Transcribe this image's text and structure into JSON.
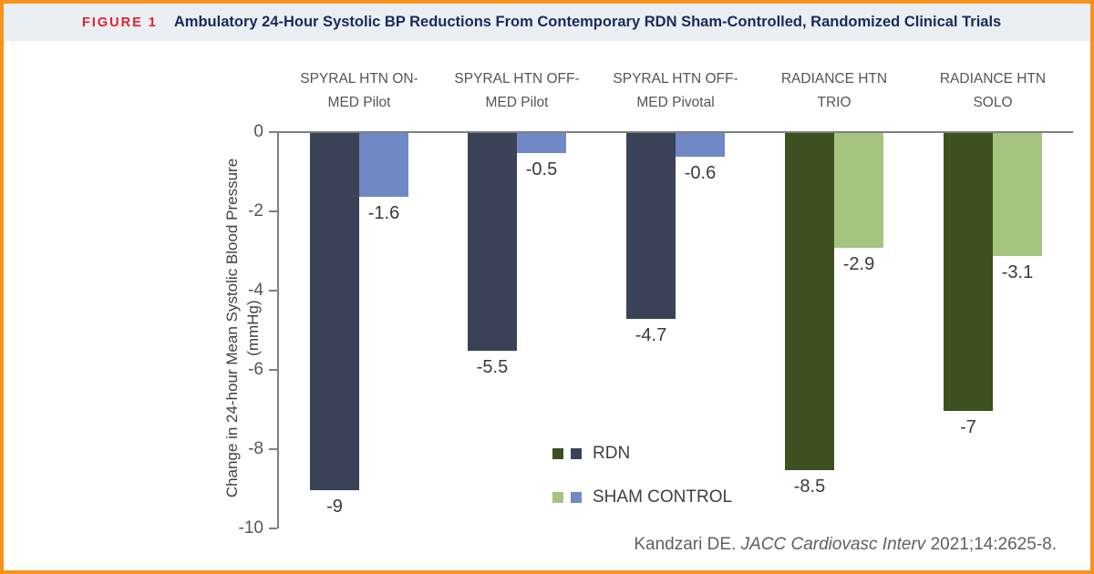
{
  "figure": {
    "label": "FIGURE 1",
    "title": "Ambulatory 24-Hour Systolic BP Reductions From Contemporary RDN Sham-Controlled, Randomized Clinical Trials"
  },
  "citation": {
    "prefix": "Kandzari DE. ",
    "journal": "JACC Cardiovasc Interv",
    "suffix": " 2021;14:2625-8."
  },
  "colors": {
    "frame_border": "#F6921E",
    "header_background": "#E9EFF3",
    "figure_label_red": "#E4212E",
    "title_navy": "#1A2A5C",
    "axis_gray": "#7F7F7F",
    "rdn_spyral_navy": "#3A4257",
    "sham_spyral_blue": "#7088C6",
    "rdn_radiance_dark_green": "#3C5020",
    "sham_radiance_light_green": "#A5C47F"
  },
  "chart_data": {
    "type": "bar",
    "title": "Ambulatory 24-Hour Systolic BP Reductions From Contemporary RDN Sham-Controlled, Randomized Clinical Trials",
    "categories": [
      "SPYRAL HTN ON-MED Pilot",
      "SPYRAL HTN OFF-MED Pilot",
      "SPYRAL HTN OFF-MED Pivotal",
      "RADIANCE HTN TRIO",
      "RADIANCE HTN SOLO"
    ],
    "category_lines": [
      [
        "SPYRAL HTN ON-",
        "MED Pilot"
      ],
      [
        "SPYRAL HTN OFF-",
        "MED Pilot"
      ],
      [
        "SPYRAL HTN OFF-",
        "MED Pivotal"
      ],
      [
        "RADIANCE HTN",
        "TRIO"
      ],
      [
        "RADIANCE HTN",
        "SOLO"
      ]
    ],
    "series": [
      {
        "name": "RDN",
        "values": [
          -9,
          -5.5,
          -4.7,
          -8.5,
          -7
        ],
        "labels": [
          "-9",
          "-5.5",
          "-4.7",
          "-8.5",
          "-7"
        ],
        "bar_colors": [
          "#3A4257",
          "#3A4257",
          "#3A4257",
          "#3C5020",
          "#3C5020"
        ]
      },
      {
        "name": "SHAM CONTROL",
        "values": [
          -1.6,
          -0.5,
          -0.6,
          -2.9,
          -3.1
        ],
        "labels": [
          "-1.6",
          "-0.5",
          "-0.6",
          "-2.9",
          "-3.1"
        ],
        "bar_colors": [
          "#7088C6",
          "#7088C6",
          "#7088C6",
          "#A5C47F",
          "#A5C47F"
        ]
      }
    ],
    "xlabel": "",
    "ylabel": "Change in 24-hour Mean Systolic Blood Pressure (mmHg)",
    "ylabel_lines": [
      "Change in 24-hour Mean Systolic Blood Pressure",
      "(mmHg)"
    ],
    "yticks": [
      0,
      -2,
      -4,
      -6,
      -8,
      -10
    ],
    "ytick_labels": [
      "0",
      "-2",
      "-4",
      "-6",
      "-8",
      "-10"
    ],
    "ylim": [
      0,
      -10
    ],
    "grid": false,
    "legend": {
      "position": "center-bottom",
      "entries": [
        {
          "label": "RDN",
          "swatches": [
            "#3C5020",
            "#3A4257"
          ]
        },
        {
          "label": "SHAM CONTROL",
          "swatches": [
            "#A5C47F",
            "#7088C6"
          ]
        }
      ]
    }
  }
}
